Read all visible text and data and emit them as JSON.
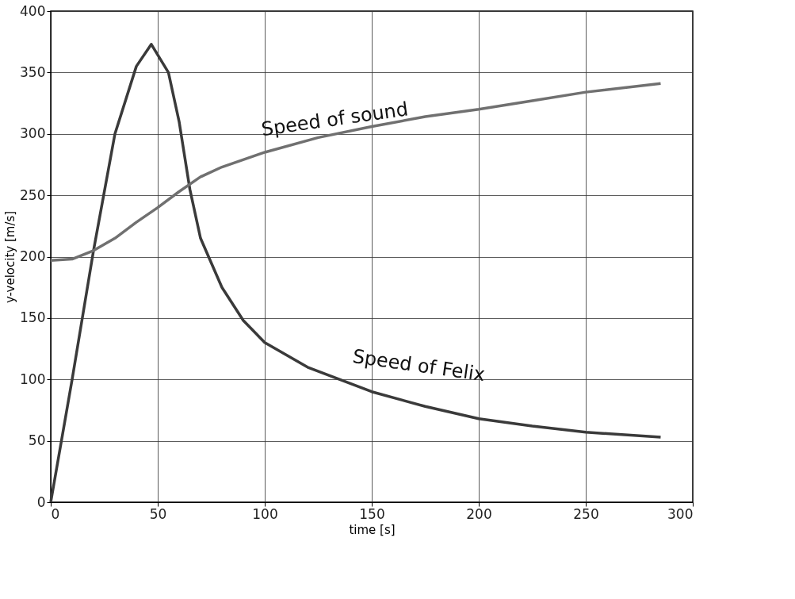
{
  "chart_data": {
    "type": "line",
    "xlabel": "time [s]",
    "ylabel": "y-velocity [m/s]",
    "xlim": [
      0,
      300
    ],
    "ylim": [
      0,
      400
    ],
    "xticks": [
      0,
      50,
      100,
      150,
      200,
      250,
      300
    ],
    "yticks": [
      0,
      50,
      100,
      150,
      200,
      250,
      300,
      350,
      400
    ],
    "grid": true,
    "legend": false,
    "marker": "none",
    "line_style": "solid",
    "series": [
      {
        "name": "Speed of Felix",
        "color": "#3a3a3a",
        "x": [
          0,
          10,
          20,
          30,
          40,
          47,
          55,
          60,
          65,
          70,
          80,
          90,
          100,
          120,
          150,
          175,
          200,
          225,
          250,
          285
        ],
        "values": [
          0,
          100,
          205,
          300,
          355,
          373,
          350,
          310,
          255,
          215,
          175,
          148,
          130,
          110,
          90,
          78,
          68,
          62,
          57,
          53
        ]
      },
      {
        "name": "Speed of sound",
        "color": "#707070",
        "x": [
          0,
          10,
          20,
          30,
          40,
          50,
          60,
          70,
          80,
          100,
          125,
          150,
          175,
          200,
          225,
          250,
          285
        ],
        "values": [
          197,
          198,
          205,
          215,
          228,
          240,
          253,
          265,
          273,
          285,
          297,
          306,
          314,
          320,
          327,
          334,
          341
        ]
      }
    ]
  }
}
